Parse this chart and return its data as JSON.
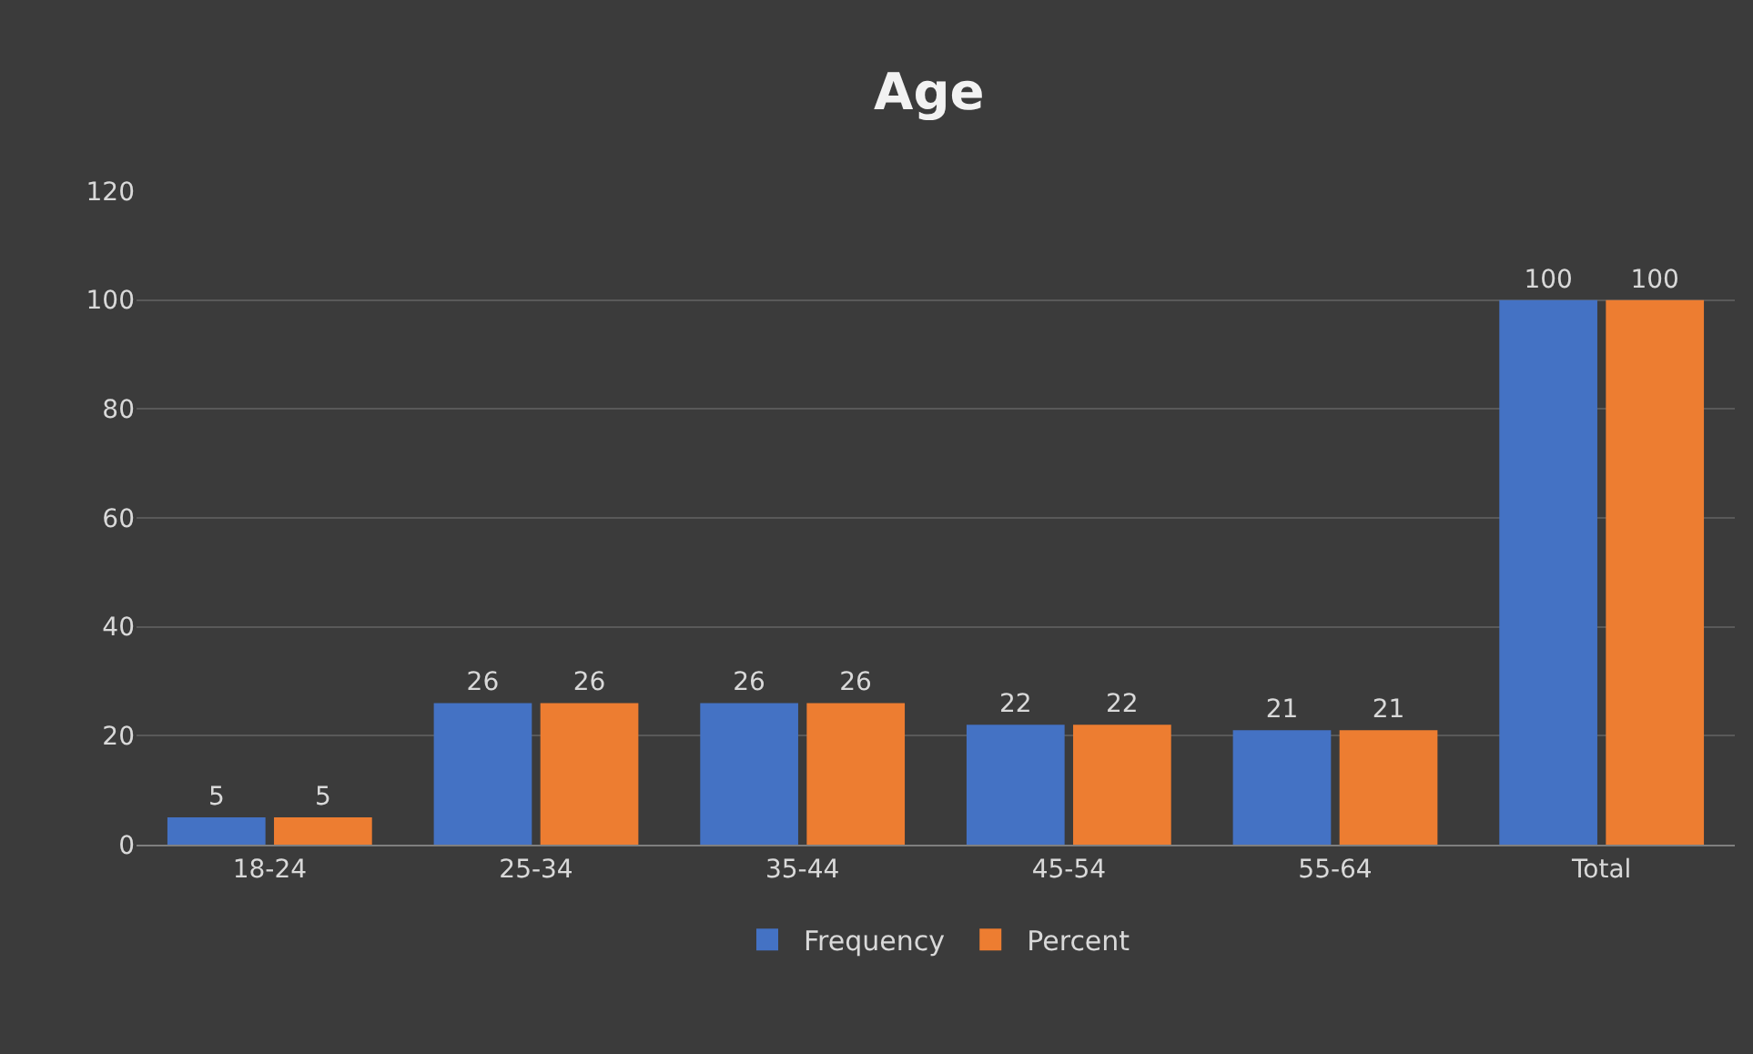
{
  "chart_data": {
    "type": "bar",
    "title": "Age",
    "categories": [
      "18-24",
      "25-34",
      "35-44",
      "45-54",
      "55-64",
      "Total"
    ],
    "series": [
      {
        "name": "Frequency",
        "color": "#4472c4",
        "values": [
          5,
          26,
          26,
          22,
          21,
          100
        ]
      },
      {
        "name": "Percent",
        "color": "#ed7d31",
        "values": [
          5,
          26,
          26,
          22,
          21,
          100
        ]
      }
    ],
    "ylim": [
      0,
      120
    ],
    "yticks": [
      0,
      20,
      40,
      60,
      80,
      100,
      120
    ],
    "grid": "y",
    "legend": "bottom",
    "data_labels": true
  }
}
